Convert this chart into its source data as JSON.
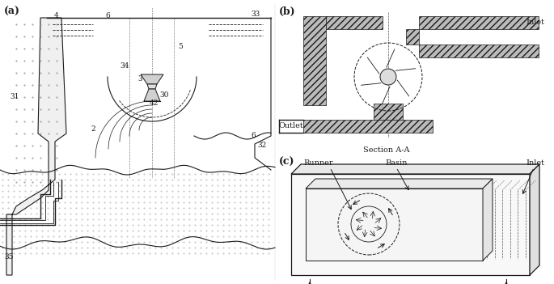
{
  "bg_color": "#ffffff",
  "lc": "#1a1a1a",
  "panel_labels": {
    "a": "(a)",
    "b": "(b)",
    "c": "(c)"
  },
  "figsize": [
    6.85,
    3.51
  ],
  "dpi": 100
}
